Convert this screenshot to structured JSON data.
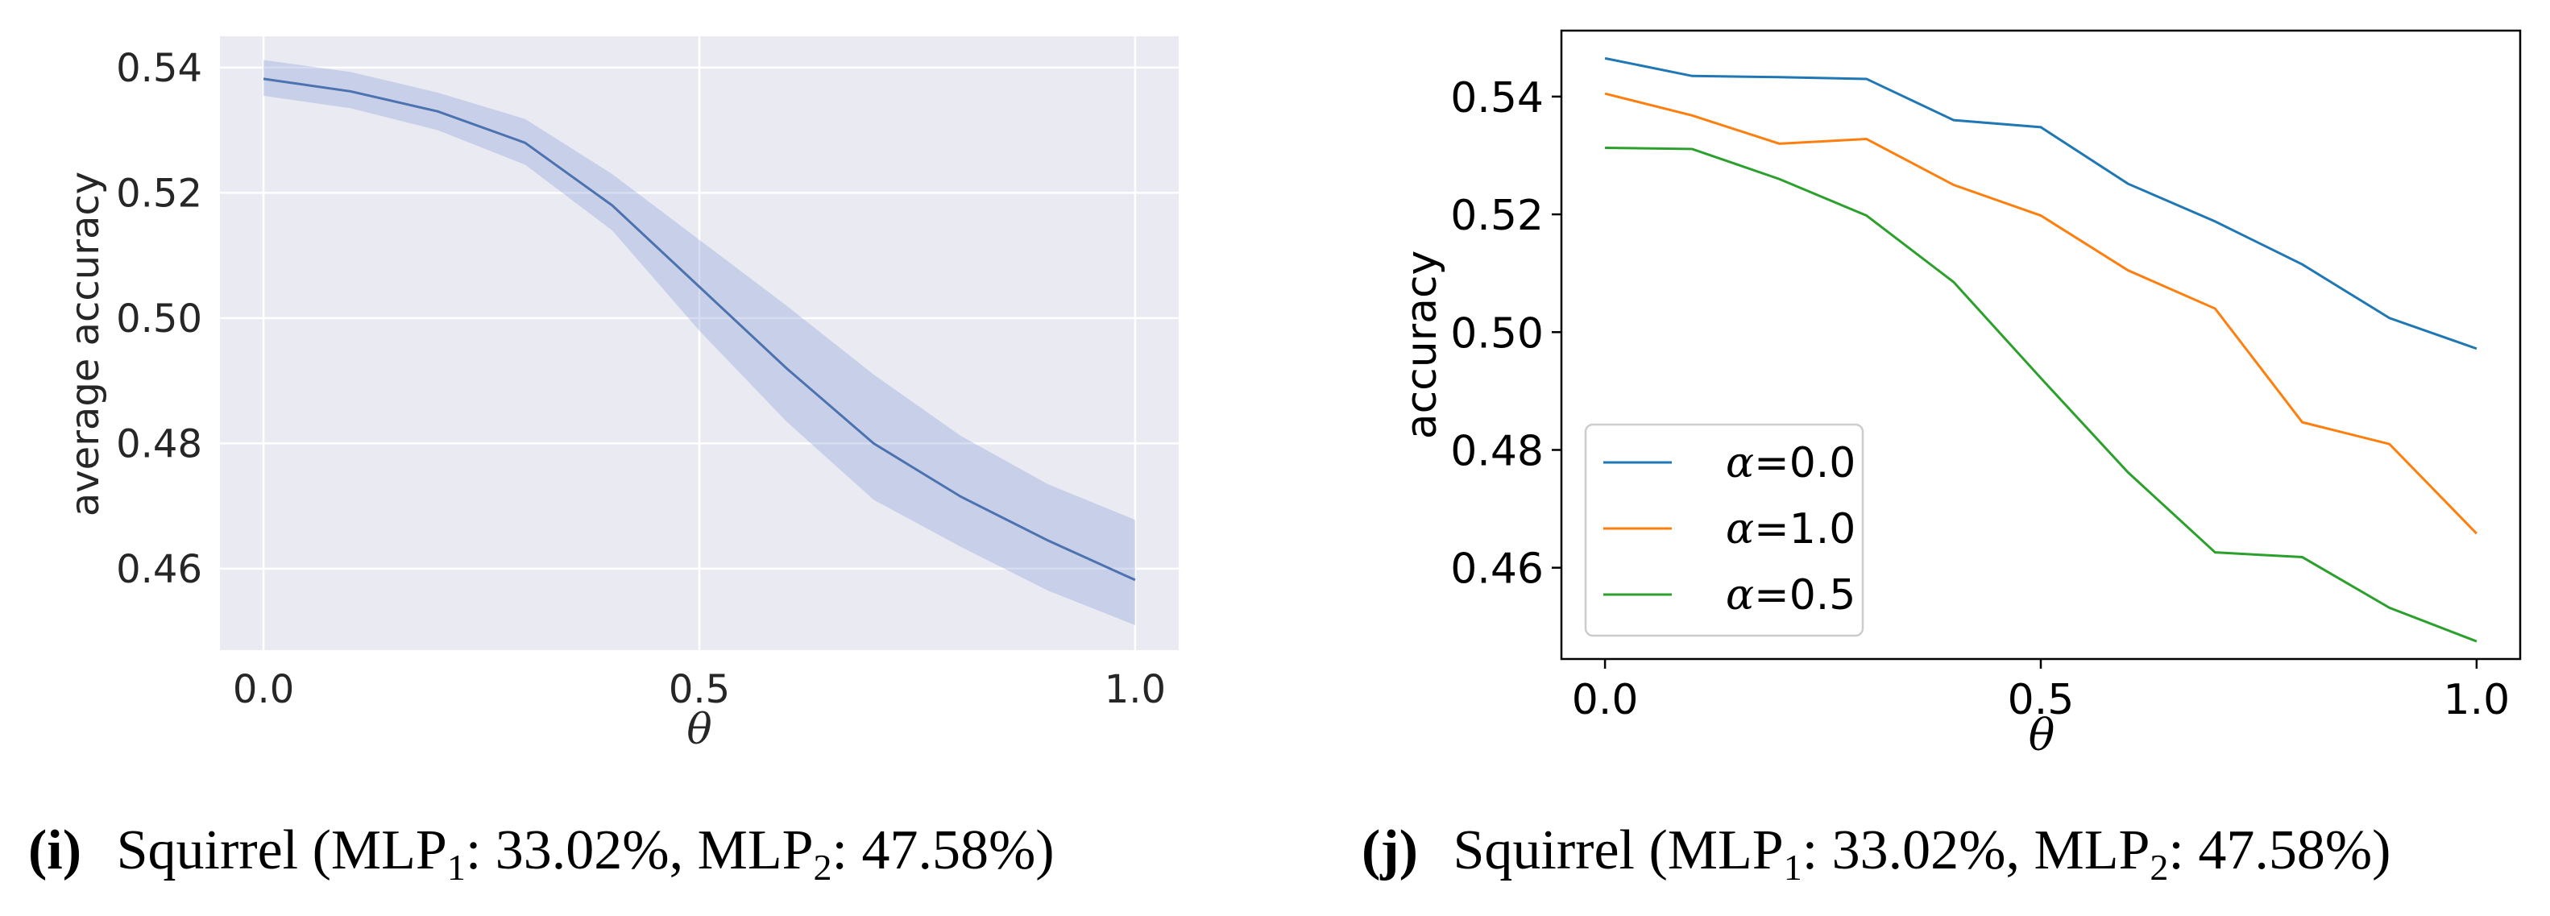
{
  "chart_data": [
    {
      "type": "line",
      "style": "seaborn-darkgrid",
      "title": "",
      "xlabel": "θ",
      "ylabel": "average accuracy",
      "xlim": [
        -0.05,
        1.05
      ],
      "ylim": [
        0.447,
        0.545
      ],
      "xticks": [
        0.0,
        0.5,
        1.0
      ],
      "xtick_labels": [
        "0.0",
        "0.5",
        "1.0"
      ],
      "yticks": [
        0.46,
        0.48,
        0.5,
        0.52,
        0.54
      ],
      "ytick_labels": [
        "0.46",
        "0.48",
        "0.50",
        "0.52",
        "0.54"
      ],
      "color": "#4c72b0",
      "band_color": "#8a9fd6",
      "x": [
        0.0,
        0.1,
        0.2,
        0.3,
        0.4,
        0.5,
        0.6,
        0.7,
        0.8,
        0.9,
        1.0
      ],
      "y": [
        0.5382,
        0.5362,
        0.533,
        0.528,
        0.518,
        0.505,
        0.492,
        0.48,
        0.4715,
        0.4645,
        0.4582
      ],
      "y_lower": [
        0.5355,
        0.5335,
        0.53,
        0.5245,
        0.514,
        0.498,
        0.4835,
        0.471,
        0.4635,
        0.4565,
        0.451
      ],
      "y_upper": [
        0.5412,
        0.5393,
        0.536,
        0.5318,
        0.523,
        0.5125,
        0.502,
        0.491,
        0.4812,
        0.4735,
        0.4678
      ],
      "caption_label": "(i)",
      "caption_text": "Squirrel (MLP",
      "caption_sub1": "1",
      "caption_mid": ": 33.02%, MLP",
      "caption_sub2": "2",
      "caption_end": ": 47.58%)"
    },
    {
      "type": "line",
      "style": "matplotlib-default",
      "title": "",
      "xlabel": "θ",
      "ylabel": "accuracy",
      "xlim": [
        -0.05,
        1.05
      ],
      "ylim": [
        0.4445,
        0.5512
      ],
      "xticks": [
        0.0,
        0.5,
        1.0
      ],
      "xtick_labels": [
        "0.0",
        "0.5",
        "1.0"
      ],
      "yticks": [
        0.46,
        0.48,
        0.5,
        0.52,
        0.54
      ],
      "ytick_labels": [
        "0.46",
        "0.48",
        "0.50",
        "0.52",
        "0.54"
      ],
      "legend_position": "lower-left",
      "x": [
        0.0,
        0.1,
        0.2,
        0.3,
        0.4,
        0.5,
        0.6,
        0.7,
        0.8,
        0.9,
        1.0
      ],
      "series": [
        {
          "name": "α=0.0",
          "symbol": "α",
          "suffix": "=0.0",
          "color": "#1f77b4",
          "values": [
            0.5465,
            0.5435,
            0.5433,
            0.543,
            0.536,
            0.5348,
            0.5252,
            0.5188,
            0.5115,
            0.5024,
            0.4972
          ]
        },
        {
          "name": "α=1.0",
          "symbol": "α",
          "suffix": "=1.0",
          "color": "#ff7f0e",
          "values": [
            0.5405,
            0.5368,
            0.532,
            0.5328,
            0.525,
            0.5198,
            0.5105,
            0.504,
            0.4847,
            0.481,
            0.4658
          ]
        },
        {
          "name": "α=0.5",
          "symbol": "α",
          "suffix": "=0.5",
          "color": "#2ca02c",
          "values": [
            0.5313,
            0.5311,
            0.526,
            0.5198,
            0.5085,
            0.4922,
            0.4762,
            0.4626,
            0.4618,
            0.4532,
            0.4475
          ]
        }
      ],
      "caption_label": "(j)",
      "caption_text": "Squirrel (MLP",
      "caption_sub1": "1",
      "caption_mid": ": 33.02%, MLP",
      "caption_sub2": "2",
      "caption_end": ": 47.58%)"
    }
  ]
}
